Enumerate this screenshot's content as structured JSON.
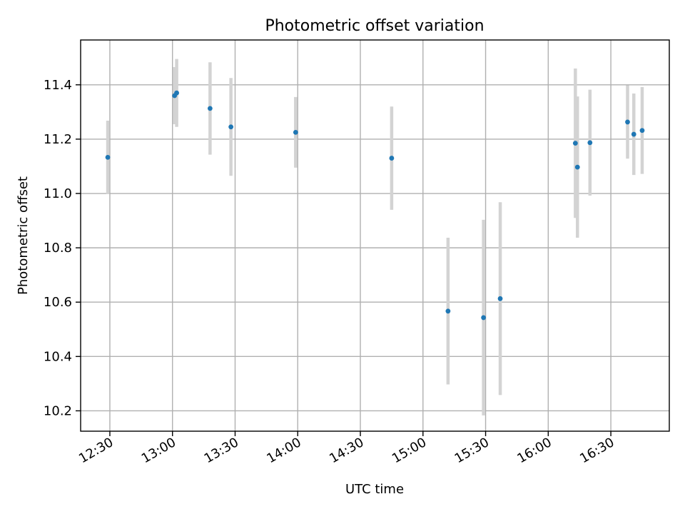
{
  "chart_data": {
    "type": "scatter",
    "title": "Photometric offset variation",
    "xlabel": "UTC time",
    "ylabel": "Photometric offset",
    "xlim": [
      "12:16",
      "16:58"
    ],
    "ylim": [
      10.125,
      11.565
    ],
    "x_ticks": [
      "12:30",
      "13:00",
      "13:30",
      "14:00",
      "14:30",
      "15:00",
      "15:30",
      "16:00",
      "16:30"
    ],
    "y_ticks": [
      10.2,
      10.4,
      10.6,
      10.8,
      11.0,
      11.2,
      11.4
    ],
    "y_tick_labels": [
      "10.2",
      "10.4",
      "10.6",
      "10.8",
      "11.0",
      "11.2",
      "11.4"
    ],
    "grid": true,
    "marker_color": "#1f77b4",
    "errorbar_color": "#d3d3d3",
    "points": [
      {
        "x": "12:29",
        "y": 11.133,
        "err": 0.135
      },
      {
        "x": "13:01",
        "y": 11.36,
        "err": 0.105
      },
      {
        "x": "13:02",
        "y": 11.37,
        "err": 0.125
      },
      {
        "x": "13:18",
        "y": 11.313,
        "err": 0.17
      },
      {
        "x": "13:28",
        "y": 11.245,
        "err": 0.18
      },
      {
        "x": "13:59",
        "y": 11.225,
        "err": 0.13
      },
      {
        "x": "14:45",
        "y": 11.13,
        "err": 0.19
      },
      {
        "x": "15:12",
        "y": 10.567,
        "err": 0.27
      },
      {
        "x": "15:29",
        "y": 10.543,
        "err": 0.36
      },
      {
        "x": "15:37",
        "y": 10.613,
        "err": 0.355
      },
      {
        "x": "16:13",
        "y": 11.185,
        "err": 0.275
      },
      {
        "x": "16:14",
        "y": 11.097,
        "err": 0.26
      },
      {
        "x": "16:20",
        "y": 11.187,
        "err": 0.195
      },
      {
        "x": "16:38",
        "y": 11.263,
        "err": 0.135
      },
      {
        "x": "16:41",
        "y": 11.218,
        "err": 0.15
      },
      {
        "x": "16:45",
        "y": 11.232,
        "err": 0.16
      }
    ]
  }
}
